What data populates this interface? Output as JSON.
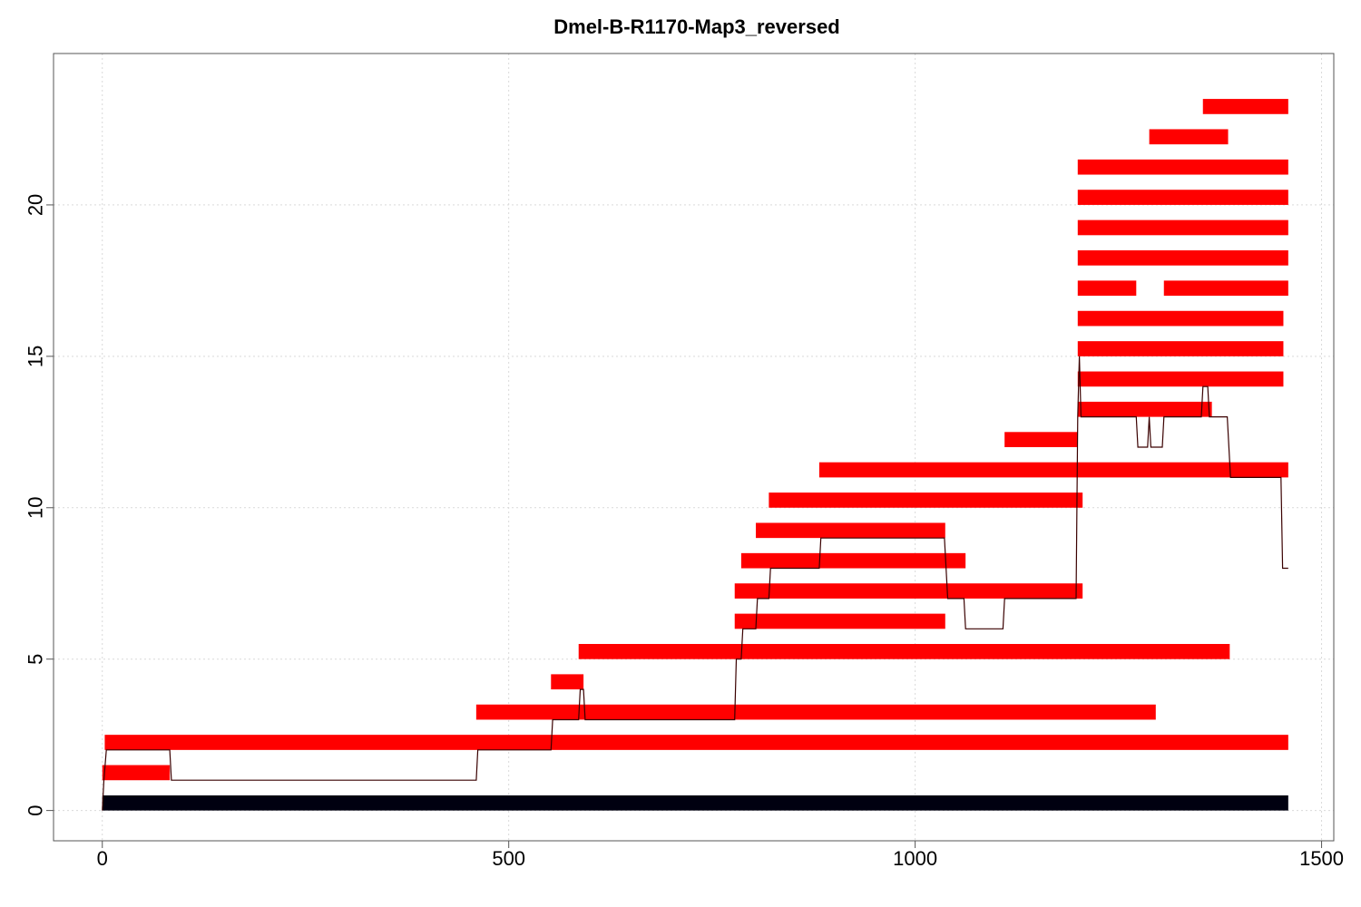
{
  "chart_data": {
    "type": "bar",
    "title": "Dmel-B-R1170-Map3_reversed",
    "xlabel": "",
    "ylabel": "",
    "xlim": [
      -60,
      1515
    ],
    "ylim": [
      -1,
      25
    ],
    "x_ticks": [
      0,
      500,
      1000,
      1500
    ],
    "y_ticks": [
      0,
      5,
      10,
      15,
      20
    ],
    "grid": true,
    "reference_bar": {
      "y": 0,
      "start": 0,
      "end": 1459,
      "color": "#000010"
    },
    "segments": [
      {
        "y": 1,
        "start": 0,
        "end": 83
      },
      {
        "y": 2,
        "start": 3,
        "end": 1459
      },
      {
        "y": 3,
        "start": 460,
        "end": 1296
      },
      {
        "y": 4,
        "start": 552,
        "end": 592
      },
      {
        "y": 5,
        "start": 586,
        "end": 1387
      },
      {
        "y": 6,
        "start": 778,
        "end": 1037
      },
      {
        "y": 7,
        "start": 778,
        "end": 1206
      },
      {
        "y": 8,
        "start": 786,
        "end": 1062
      },
      {
        "y": 9,
        "start": 804,
        "end": 1037
      },
      {
        "y": 10,
        "start": 820,
        "end": 1206
      },
      {
        "y": 11,
        "start": 882,
        "end": 1459
      },
      {
        "y": 12,
        "start": 1110,
        "end": 1200
      },
      {
        "y": 13,
        "start": 1200,
        "end": 1365
      },
      {
        "y": 14,
        "start": 1200,
        "end": 1453
      },
      {
        "y": 15,
        "start": 1200,
        "end": 1453
      },
      {
        "y": 16,
        "start": 1200,
        "end": 1453
      },
      {
        "y": 17,
        "start": 1200,
        "end": 1272
      },
      {
        "y": 17,
        "start": 1306,
        "end": 1459
      },
      {
        "y": 18,
        "start": 1200,
        "end": 1459
      },
      {
        "y": 19,
        "start": 1200,
        "end": 1459
      },
      {
        "y": 20,
        "start": 1200,
        "end": 1459
      },
      {
        "y": 21,
        "start": 1200,
        "end": 1459
      },
      {
        "y": 22,
        "start": 1288,
        "end": 1385
      },
      {
        "y": 23,
        "start": 1354,
        "end": 1459
      }
    ],
    "coverage_line": [
      [
        0,
        0
      ],
      [
        2,
        1
      ],
      [
        5,
        2
      ],
      [
        83,
        2
      ],
      [
        85,
        1
      ],
      [
        460,
        1
      ],
      [
        462,
        2
      ],
      [
        552,
        2
      ],
      [
        554,
        3
      ],
      [
        586,
        3
      ],
      [
        588,
        4
      ],
      [
        592,
        4
      ],
      [
        594,
        3
      ],
      [
        778,
        3
      ],
      [
        780,
        5
      ],
      [
        786,
        5
      ],
      [
        788,
        6
      ],
      [
        804,
        6
      ],
      [
        806,
        7
      ],
      [
        820,
        7
      ],
      [
        822,
        8
      ],
      [
        882,
        8
      ],
      [
        884,
        9
      ],
      [
        1036,
        9
      ],
      [
        1038,
        8
      ],
      [
        1040,
        7
      ],
      [
        1060,
        7
      ],
      [
        1062,
        6
      ],
      [
        1108,
        6
      ],
      [
        1110,
        7
      ],
      [
        1198,
        7
      ],
      [
        1200,
        13
      ],
      [
        1202,
        15
      ],
      [
        1204,
        13
      ],
      [
        1272,
        13
      ],
      [
        1274,
        12
      ],
      [
        1286,
        12
      ],
      [
        1288,
        13
      ],
      [
        1290,
        12
      ],
      [
        1304,
        12
      ],
      [
        1306,
        13
      ],
      [
        1352,
        13
      ],
      [
        1354,
        14
      ],
      [
        1360,
        14
      ],
      [
        1362,
        13
      ],
      [
        1384,
        13
      ],
      [
        1386,
        12
      ],
      [
        1388,
        11
      ],
      [
        1450,
        11
      ],
      [
        1452,
        8
      ],
      [
        1459,
        8
      ]
    ],
    "colors": {
      "segment": "#ff0000",
      "reference": "#000010",
      "line": "#3a0000",
      "grid": "#d9d9d9",
      "axis": "#555555"
    }
  }
}
